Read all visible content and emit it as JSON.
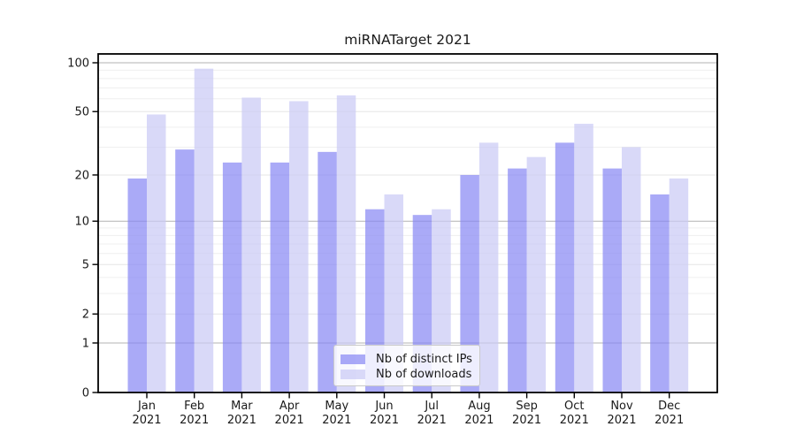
{
  "figure": {
    "title": "miRNATarget 2021",
    "background": "#ffffff"
  },
  "chart_data": {
    "type": "bar",
    "title": "miRNATarget 2021",
    "xlabel": "",
    "ylabel": "",
    "yscale": "symlog ln(1+v)",
    "ylim": [
      0,
      113
    ],
    "grid": "horizontal on",
    "legend_position": "lower center",
    "categories": [
      {
        "month": "Jan",
        "year": "2021"
      },
      {
        "month": "Feb",
        "year": "2021"
      },
      {
        "month": "Mar",
        "year": "2021"
      },
      {
        "month": "Apr",
        "year": "2021"
      },
      {
        "month": "May",
        "year": "2021"
      },
      {
        "month": "Jun",
        "year": "2021"
      },
      {
        "month": "Jul",
        "year": "2021"
      },
      {
        "month": "Aug",
        "year": "2021"
      },
      {
        "month": "Sep",
        "year": "2021"
      },
      {
        "month": "Oct",
        "year": "2021"
      },
      {
        "month": "Nov",
        "year": "2021"
      },
      {
        "month": "Dec",
        "year": "2021"
      }
    ],
    "series": [
      {
        "name": "Nb of distinct IPs",
        "color": "rgba(134,134,244,0.7)",
        "values": [
          19,
          29,
          24,
          24,
          28,
          12,
          11,
          20,
          22,
          32,
          22,
          15
        ]
      },
      {
        "name": "Nb of downloads",
        "color": "rgba(201,201,245,0.7)",
        "values": [
          48,
          92,
          61,
          58,
          63,
          15,
          12,
          32,
          26,
          42,
          30,
          19
        ]
      }
    ],
    "yticks_labeled": [
      0,
      1,
      2,
      5,
      10,
      20,
      50,
      100
    ],
    "yticks_major_grid": [
      1,
      10,
      100
    ],
    "yticks_medium_grid": [
      2,
      5,
      20,
      50
    ],
    "yticks_minor_grid": [
      3,
      4,
      6,
      7,
      8,
      9,
      30,
      40,
      60,
      70,
      80,
      90
    ],
    "colors": {
      "grid_major": "#b3b3b3",
      "grid_medium": "#e6e6e6",
      "grid_minor": "#efefef",
      "axis": "#000000",
      "text": "#1a1a1a"
    }
  }
}
